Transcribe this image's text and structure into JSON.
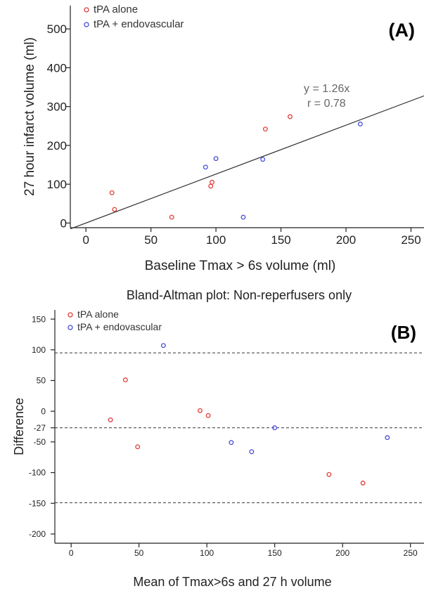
{
  "colors": {
    "tpa_alone": "#e0403a",
    "tpa_endo": "#4a4fd6"
  },
  "chart_data": [
    {
      "type": "scatter",
      "panel_label": "(A)",
      "title": "",
      "xlabel": "Baseline Tmax > 6s volume (ml)",
      "ylabel": "27 hour infarct volume (ml)",
      "xlim": [
        -12,
        260
      ],
      "ylim": [
        -12,
        560
      ],
      "x_ticks": [
        0,
        50,
        100,
        150,
        200,
        250
      ],
      "y_ticks": [
        0,
        100,
        200,
        300,
        400,
        500
      ],
      "grid": false,
      "legend_position": "top-left",
      "annotation": [
        "y = 1.26x",
        "r = 0.78"
      ],
      "fit_line": {
        "slope": 1.26,
        "intercept": 0
      },
      "series": [
        {
          "name": "tPA alone",
          "color": "#e0403a",
          "x": [
            20,
            22,
            66,
            96,
            97,
            138,
            157
          ],
          "y": [
            78,
            35,
            15,
            95,
            105,
            242,
            274
          ]
        },
        {
          "name": "tPA + endovascular",
          "color": "#4a4fd6",
          "x": [
            92,
            100,
            121,
            136,
            211
          ],
          "y": [
            144,
            166,
            15,
            164,
            255
          ]
        }
      ]
    },
    {
      "type": "scatter",
      "panel_label": "(B)",
      "title": "Bland-Altman plot: Non-reperfusers only",
      "xlabel": "Mean of Tmax>6s and 27 h volume",
      "ylabel": "Difference",
      "xlim": [
        -12,
        260
      ],
      "ylim": [
        -215,
        165
      ],
      "x_ticks": [
        0,
        50,
        100,
        150,
        200,
        250
      ],
      "y_ticks": [
        -200,
        -150,
        -100,
        -50,
        -27,
        0,
        50,
        100,
        150
      ],
      "grid": false,
      "legend_position": "top-left",
      "reference_lines": [
        95,
        -27,
        -149
      ],
      "series": [
        {
          "name": "tPA alone",
          "color": "#e0403a",
          "x": [
            29,
            40,
            49,
            95,
            101,
            190,
            215
          ],
          "y": [
            -14,
            51,
            -58,
            1,
            -7,
            -103,
            -117
          ]
        },
        {
          "name": "tPA + endovascular",
          "color": "#4a4fd6",
          "x": [
            68,
            118,
            133,
            150,
            233
          ],
          "y": [
            107,
            -51,
            -66,
            -27,
            -43
          ]
        }
      ]
    }
  ]
}
